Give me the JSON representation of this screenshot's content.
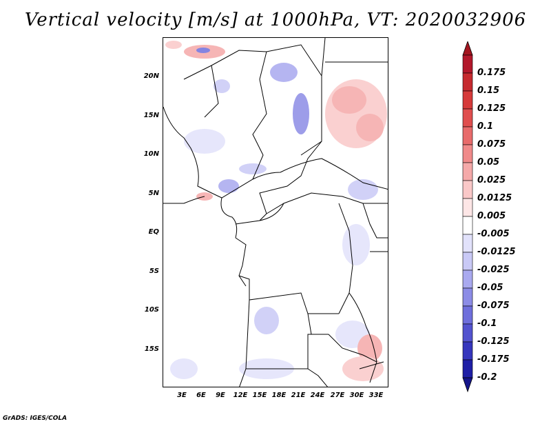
{
  "title": "Vertical velocity [m/s] at 1000hPa, VT: 2020032906",
  "footer": "GrADS: IGES/COLA",
  "map": {
    "lat_labels": [
      "20N",
      "15N",
      "10N",
      "5N",
      "EQ",
      "5S",
      "10S",
      "15S"
    ],
    "lon_labels": [
      "3E",
      "6E",
      "9E",
      "12E",
      "15E",
      "18E",
      "21E",
      "24E",
      "27E",
      "30E",
      "33E"
    ]
  },
  "colorbar": {
    "labels": [
      "0.175",
      "0.15",
      "0.125",
      "0.1",
      "0.075",
      "0.05",
      "0.025",
      "0.0125",
      "0.005",
      "-0.005",
      "-0.0125",
      "-0.025",
      "-0.05",
      "-0.075",
      "-0.1",
      "-0.125",
      "-0.175",
      "-0.2"
    ],
    "colors": [
      "#b2182b",
      "#c62a2f",
      "#d63a3a",
      "#e04e4e",
      "#e86b6b",
      "#f08a8a",
      "#f5a9a9",
      "#fac8c8",
      "#fde6e6",
      "#ffffff",
      "#e2e2fb",
      "#c9c9f6",
      "#a9a9ef",
      "#8c8ce6",
      "#6f6fdc",
      "#5353cf",
      "#3636bd",
      "#1f1fa6"
    ],
    "top_arrow_color": "#a3151f",
    "bottom_arrow_color": "#15158a"
  }
}
